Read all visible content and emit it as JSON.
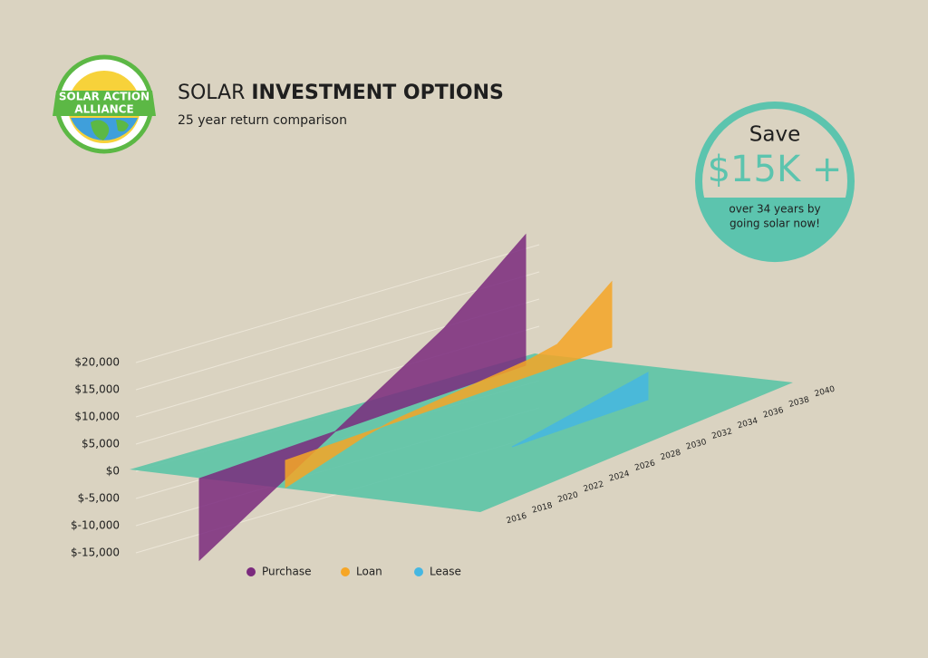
{
  "chart_data": {
    "type": "ribbon3d",
    "title": "SOLAR INVESTMENT OPTIONS",
    "subtitle": "25 year return comparison",
    "logo": [
      "SOLAR ACTION",
      "ALLIANCE"
    ],
    "badge": {
      "top": "Save",
      "value": "$15K +",
      "note": [
        "over 34 years by",
        "going solar now!"
      ]
    },
    "x": [
      2016,
      2018,
      2020,
      2022,
      2024,
      2026,
      2028,
      2030,
      2032,
      2034,
      2036,
      2038,
      2040
    ],
    "xlim": [
      2016,
      2040
    ],
    "series": [
      {
        "name": "Purchase",
        "color": "#7b2a7e",
        "values": [
          -15000,
          -12000,
          -9000,
          -6000,
          -3000,
          0,
          3000,
          6000,
          9000,
          12000,
          16000,
          20000,
          24000
        ]
      },
      {
        "name": "Loan",
        "color": "#f6a626",
        "values": [
          -5000,
          -3500,
          -2000,
          -500,
          500,
          1000,
          1500,
          2000,
          2500,
          3000,
          4000,
          8000,
          12000
        ]
      },
      {
        "name": "Lease",
        "color": "#45b7e2",
        "values": [
          null,
          null,
          null,
          null,
          null,
          null,
          null,
          0,
          1000,
          2000,
          3000,
          4000,
          5000
        ]
      }
    ],
    "ylim": [
      -15000,
      20000
    ],
    "yticks": [
      {
        "value": -15000,
        "label": "$-15,000"
      },
      {
        "value": -10000,
        "label": "$-10,000"
      },
      {
        "value": -5000,
        "label": "$-5,000"
      },
      {
        "value": 0,
        "label": "$0"
      },
      {
        "value": 5000,
        "label": "$5,000"
      },
      {
        "value": 10000,
        "label": "$10,000"
      },
      {
        "value": 15000,
        "label": "$15,000"
      },
      {
        "value": 20000,
        "label": "$20,000"
      }
    ],
    "grid": true,
    "plane_color": "#5ec4a7"
  }
}
